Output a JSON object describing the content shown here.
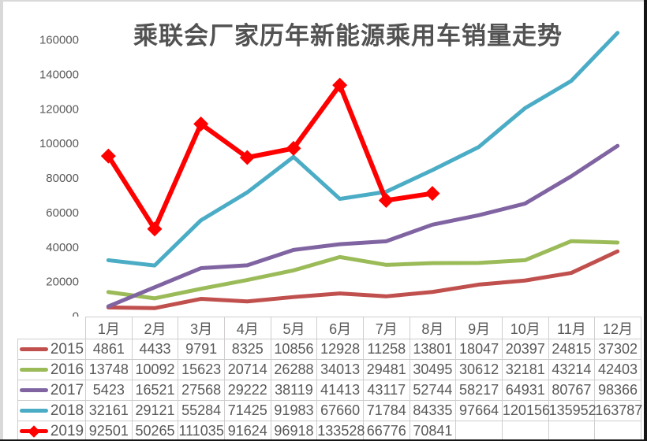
{
  "page": {
    "top_strip_color": "#d9d9d9",
    "left_strip_color": "#d9d9d9",
    "right_strip_color": "#161616",
    "bottom_strip_color": "#161616",
    "background": "#ffffff"
  },
  "chart_data": {
    "type": "line",
    "title": "乘联会厂家历年新能源乘用车销量走势",
    "categories": [
      "1月",
      "2月",
      "3月",
      "4月",
      "5月",
      "6月",
      "7月",
      "8月",
      "9月",
      "10月",
      "11月",
      "12月"
    ],
    "series": [
      {
        "name": "2015",
        "color": "#C0504D",
        "marker": "none",
        "values": [
          4861,
          4433,
          9791,
          8325,
          10856,
          12928,
          11258,
          13801,
          18047,
          20397,
          24815,
          37302
        ]
      },
      {
        "name": "2016",
        "color": "#9BBB59",
        "marker": "none",
        "values": [
          13748,
          10092,
          15623,
          20714,
          26288,
          34013,
          29481,
          30495,
          30612,
          32181,
          43214,
          42403
        ]
      },
      {
        "name": "2017",
        "color": "#8064A2",
        "marker": "none",
        "values": [
          5423,
          16521,
          27568,
          29222,
          38119,
          41413,
          43117,
          52744,
          58217,
          64931,
          80767,
          98366
        ]
      },
      {
        "name": "2018",
        "color": "#4BACC6",
        "marker": "none",
        "values": [
          32161,
          29121,
          55284,
          71425,
          91983,
          67660,
          71784,
          84335,
          97664,
          120156,
          135952,
          163787
        ]
      },
      {
        "name": "2019",
        "color": "#FF0000",
        "marker": "diamond",
        "values": [
          92501,
          50265,
          111035,
          91624,
          96918,
          133528,
          66776,
          70841
        ]
      }
    ],
    "ylim": [
      0,
      160000
    ],
    "yticks": [
      0,
      20000,
      40000,
      60000,
      80000,
      100000,
      120000,
      140000,
      160000
    ],
    "grid": false,
    "legend_position": "table-first-column",
    "styles": {
      "title_color": "#525252",
      "tick_label_color": "#595959",
      "table_text_color": "#595959",
      "table_border_color": "#d0cece",
      "line_width": 5,
      "highlight_line_width": 6
    }
  }
}
